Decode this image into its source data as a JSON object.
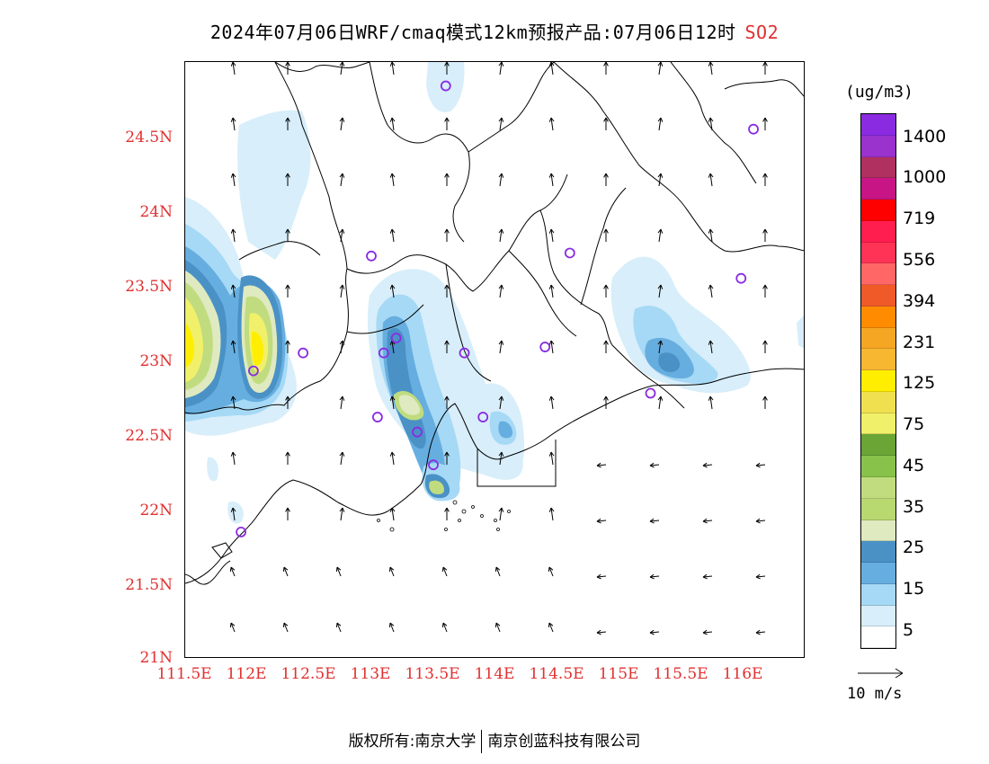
{
  "title": {
    "main": "2024年07月06日WRF/cmaq模式12km预报产品:07月06日12时",
    "species": "SO2"
  },
  "map": {
    "lat_ticks": [
      "24.5N",
      "24N",
      "23.5N",
      "23N",
      "22.5N",
      "22N",
      "21.5N",
      "21N"
    ],
    "lon_ticks": [
      "111.5E",
      "112E",
      "112.5E",
      "113E",
      "113.5E",
      "114E",
      "114.5E",
      "115E",
      "115.5E",
      "116E"
    ],
    "lat_values": [
      24.5,
      24,
      23.5,
      23,
      22.5,
      22,
      21.5,
      21
    ],
    "lon_values": [
      111.5,
      112,
      112.5,
      113,
      113.5,
      114,
      114.5,
      115,
      115.5,
      116
    ],
    "extent": {
      "lon_min": 111.5,
      "lon_max": 116.5,
      "lat_min": 21,
      "lat_max": 25
    },
    "stations": [
      [
        113.6,
        24.84
      ],
      [
        116.08,
        24.55
      ],
      [
        113.0,
        23.7
      ],
      [
        114.6,
        23.72
      ],
      [
        115.98,
        23.55
      ],
      [
        112.45,
        23.05
      ],
      [
        113.1,
        23.05
      ],
      [
        113.2,
        23.15
      ],
      [
        113.75,
        23.05
      ],
      [
        114.4,
        23.09
      ],
      [
        112.05,
        22.93
      ],
      [
        113.05,
        22.62
      ],
      [
        113.37,
        22.52
      ],
      [
        113.9,
        22.62
      ],
      [
        115.25,
        22.78
      ],
      [
        113.5,
        22.3
      ],
      [
        111.95,
        21.85
      ]
    ],
    "plume_colors": {
      "c5": "#d8eefa",
      "c15": "#a6d9f5",
      "c20": "#67aee0",
      "c25": "#4a91c6",
      "c30": "#dfeac0",
      "c35": "#c0dc7e",
      "c45": "#88c24a",
      "c75": "#f0f06a",
      "c125": "#ffee00"
    },
    "boundary_color": "#000000",
    "station_color": "#8a2be2"
  },
  "colorbar": {
    "units": "(ug/m3)",
    "colors": [
      "#8a2be2",
      "#9a32cd",
      "#b03060",
      "#c71585",
      "#ff0000",
      "#ff1e4e",
      "#ff3355",
      "#ff6666",
      "#f05a28",
      "#ff8c00",
      "#f5a623",
      "#f7b731",
      "#ffee00",
      "#f0e050",
      "#f0f06a",
      "#6aa535",
      "#88c24a",
      "#c0dc7e",
      "#b8d870",
      "#dfeac0",
      "#4a91c6",
      "#67aee0",
      "#a6d9f5",
      "#d8eefa",
      "#ffffff"
    ],
    "labels": [
      "1400",
      "1000",
      "719",
      "556",
      "394",
      "231",
      "125",
      "75",
      "45",
      "35",
      "25",
      "15",
      "5"
    ]
  },
  "reference_vector": {
    "label": "10 m/s"
  },
  "footer": {
    "left": "版权所有:南京大学",
    "right": "南京创蓝科技有限公司"
  }
}
